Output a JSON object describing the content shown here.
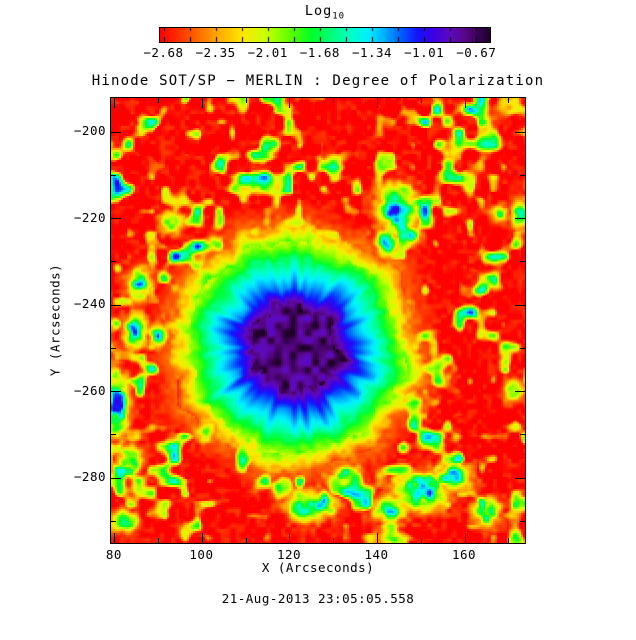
{
  "window": {
    "background": "#ffffff",
    "text_color": "#000000"
  },
  "colorbar": {
    "title_main": "Log",
    "title_sub": "10",
    "tick_labels": [
      "−2.68",
      "−2.35",
      "−2.01",
      "−1.68",
      "−1.34",
      "−1.01",
      "−0.67"
    ]
  },
  "titles": {
    "plot_title": "Hinode SOT/SP − MERLIN : Degree of Polarization",
    "x_axis": "X (Arcseconds)",
    "y_axis": "Y (Arcseconds)",
    "timestamp": "21-Aug-2013 23:05:05.558"
  },
  "chart_data": {
    "type": "heatmap",
    "title": "Hinode SOT/SP − MERLIN : Degree of Polarization",
    "xlabel": "X (Arcseconds)",
    "ylabel": "Y (Arcseconds)",
    "quantity": "Log10 degree of polarization",
    "timestamp": "21-Aug-2013 23:05:05.558",
    "xlim": [
      79.1,
      173.7
    ],
    "ylim": [
      -295.0,
      -192.1
    ],
    "xticks": [
      80,
      100,
      120,
      140,
      160
    ],
    "x_minor_ticks": [
      90,
      110,
      130,
      150,
      170
    ],
    "yticks": [
      -200,
      -220,
      -240,
      -260,
      -280
    ],
    "y_minor_ticks": [
      -210,
      -230,
      -250,
      -270,
      -290
    ],
    "grid": false,
    "colorbar": {
      "label": "Log10",
      "position": "top",
      "ticks": [
        -2.68,
        -2.35,
        -2.01,
        -1.68,
        -1.34,
        -1.01,
        -0.67
      ],
      "value_range": [
        -2.68,
        -0.67
      ],
      "colormap_stops": [
        {
          "pos": 0.0,
          "color": "#ff0000"
        },
        {
          "pos": 0.09,
          "color": "#ff5000"
        },
        {
          "pos": 0.17,
          "color": "#ffa500"
        },
        {
          "pos": 0.25,
          "color": "#ffe800"
        },
        {
          "pos": 0.32,
          "color": "#c8ff00"
        },
        {
          "pos": 0.39,
          "color": "#64ff00"
        },
        {
          "pos": 0.46,
          "color": "#00ff28"
        },
        {
          "pos": 0.52,
          "color": "#00ff78"
        },
        {
          "pos": 0.58,
          "color": "#00ffc8"
        },
        {
          "pos": 0.63,
          "color": "#00f0ff"
        },
        {
          "pos": 0.68,
          "color": "#00afff"
        },
        {
          "pos": 0.73,
          "color": "#005fff"
        },
        {
          "pos": 0.78,
          "color": "#1414ff"
        },
        {
          "pos": 0.83,
          "color": "#3c00e6"
        },
        {
          "pos": 0.88,
          "color": "#5f0abe"
        },
        {
          "pos": 0.93,
          "color": "#550582"
        },
        {
          "pos": 1.0,
          "color": "#1e0028"
        }
      ]
    },
    "features": {
      "description": "Sunspot polarization map: dark purple umbra (log10 ≈ −0.7) with near-black patches, surrounded by a blue-to-cyan filamentary penumbra that fades through green and yellow into a red quiet-sun background (log10 ≈ −2.7) speckled with yellow/green magnetic network and isolated blue flux elements.",
      "sunspot_center_arcsec": [
        121,
        -249.8
      ],
      "umbra_radius_arcsec": 11.5,
      "penumbra_outer_radius_arcsec": 24,
      "umbra_log10": -0.7,
      "background_log10": -2.7,
      "network_patches": [
        [
          144.5,
          -217.5,
          4,
          5,
          0.78
        ],
        [
          142,
          -226,
          2.5,
          3,
          0.6
        ],
        [
          147.5,
          -224,
          2,
          2,
          0.55
        ],
        [
          80.5,
          -263,
          2.5,
          7,
          0.72
        ],
        [
          85.5,
          -235,
          2.5,
          4,
          0.58
        ],
        [
          84.5,
          -246,
          2.5,
          3.5,
          0.65
        ],
        [
          90,
          -247,
          2,
          2.5,
          0.55
        ],
        [
          83.5,
          -276,
          2.5,
          3,
          0.6
        ],
        [
          103,
          -239,
          2,
          2.5,
          0.55
        ],
        [
          108.5,
          -231,
          2,
          2,
          0.5
        ],
        [
          93,
          -221,
          2.5,
          2.5,
          0.5
        ],
        [
          112,
          -224,
          2,
          2,
          0.45
        ],
        [
          139.5,
          -245.5,
          2.5,
          2.5,
          0.62
        ],
        [
          141.5,
          -259,
          2.5,
          2.5,
          0.58
        ],
        [
          147,
          -262,
          3,
          2.5,
          0.5
        ],
        [
          101.5,
          -268.5,
          3,
          3,
          0.58
        ],
        [
          97,
          -253,
          2.5,
          2.5,
          0.45
        ],
        [
          150,
          -283,
          6,
          4,
          0.72
        ],
        [
          143,
          -287,
          4,
          3,
          0.6
        ],
        [
          157,
          -280,
          4,
          3,
          0.65
        ],
        [
          127,
          -286,
          3.5,
          3,
          0.62
        ],
        [
          133,
          -279,
          3,
          2.5,
          0.5
        ],
        [
          118,
          -282,
          2.5,
          2.5,
          0.45
        ],
        [
          123.5,
          -286.5,
          4,
          3.5,
          0.6
        ],
        [
          168,
          -219,
          2,
          2,
          0.42
        ],
        [
          172.5,
          -219,
          2,
          3,
          0.55
        ],
        [
          165,
          -288,
          3,
          3,
          0.55
        ],
        [
          171,
          -260,
          2,
          2.5,
          0.5
        ],
        [
          82,
          -290,
          3,
          2.5,
          0.5
        ]
      ]
    }
  }
}
